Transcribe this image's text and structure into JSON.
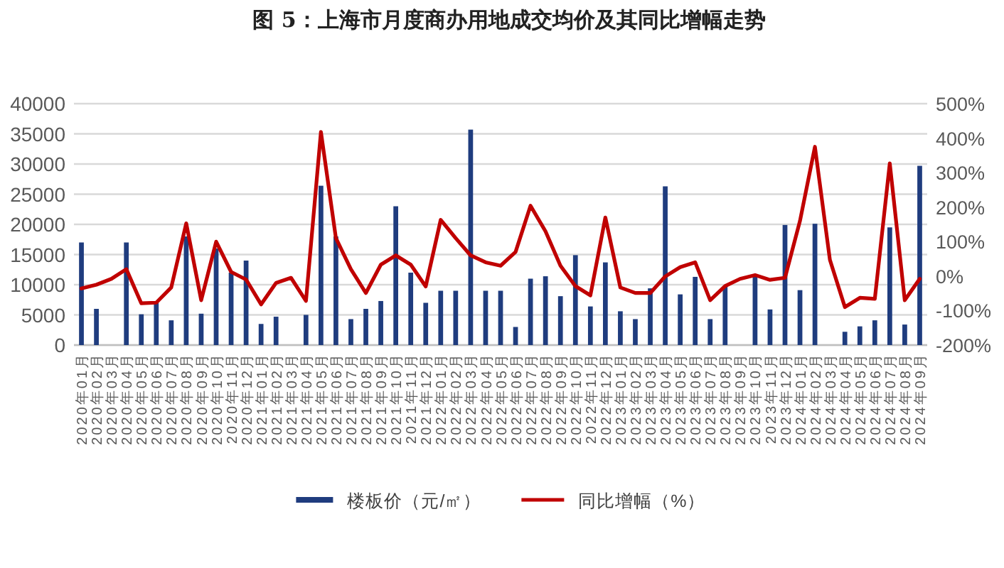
{
  "chart_data": {
    "type": "bar",
    "title": "图 5：上海市月度商办用地成交均价及其同比增幅走势",
    "categories": [
      "2020年01月",
      "2020年02月",
      "2020年03月",
      "2020年04月",
      "2020年05月",
      "2020年06月",
      "2020年07月",
      "2020年08月",
      "2020年09月",
      "2020年10月",
      "2020年11月",
      "2020年12月",
      "2021年01月",
      "2021年02月",
      "2021年03月",
      "2021年04月",
      "2021年05月",
      "2021年06月",
      "2021年07月",
      "2021年08月",
      "2021年09月",
      "2021年10月",
      "2021年11月",
      "2021年12月",
      "2022年01月",
      "2022年02月",
      "2022年03月",
      "2022年04月",
      "2022年05月",
      "2022年06月",
      "2022年07月",
      "2022年08月",
      "2022年09月",
      "2022年10月",
      "2022年11月",
      "2022年12月",
      "2023年01月",
      "2023年02月",
      "2023年03月",
      "2023年04月",
      "2023年05月",
      "2023年06月",
      "2023年07月",
      "2023年08月",
      "2023年09月",
      "2023年10月",
      "2023年11月",
      "2023年12月",
      "2024年01月",
      "2024年02月",
      "2024年03月",
      "2024年04月",
      "2024年05月",
      "2024年06月",
      "2024年07月",
      "2024年08月",
      "2024年09月"
    ],
    "series": [
      {
        "name": "楼板价（元/㎡）",
        "color": "#1f3c7e",
        "values": [
          17000,
          6000,
          null,
          17000,
          5100,
          7000,
          4100,
          18000,
          5200,
          16000,
          12000,
          14000,
          3500,
          4700,
          null,
          5000,
          26400,
          18000,
          4300,
          6000,
          7300,
          23000,
          12000,
          7000,
          9000,
          9000,
          35700,
          9000,
          9000,
          3000,
          11000,
          11400,
          8100,
          14900,
          6400,
          13700,
          5600,
          4300,
          9400,
          26300,
          8400,
          11300,
          4300,
          9800,
          null,
          11300,
          5900,
          19900,
          9100,
          20100,
          null,
          2200,
          3100,
          4100,
          19500,
          3400,
          29700
        ]
      },
      {
        "name": "同比增幅（%）",
        "type": "line",
        "axis": "y2",
        "color": "#c00000",
        "values": [
          -36,
          -25,
          -8,
          20,
          -79,
          -77,
          -33,
          153,
          -70,
          100,
          12,
          -10,
          -82,
          -20,
          -5,
          -72,
          418,
          110,
          20,
          -49,
          33,
          60,
          33,
          -30,
          163,
          110,
          60,
          40,
          30,
          70,
          204,
          130,
          30,
          -29,
          -56,
          170,
          -33,
          -49,
          -49,
          -1,
          26,
          40,
          -70,
          -29,
          -8,
          3,
          -11,
          -5,
          160,
          375,
          47,
          -90,
          -63,
          -66,
          327,
          -70,
          -8
        ]
      }
    ],
    "ylim": [
      0,
      40000
    ],
    "yticks": [
      0,
      5000,
      10000,
      15000,
      20000,
      25000,
      30000,
      35000,
      40000
    ],
    "y2lim": [
      -200,
      500
    ],
    "y2ticks": [
      {
        "value": -200,
        "label": "-200%"
      },
      {
        "value": -100,
        "label": "-100%"
      },
      {
        "value": 0,
        "label": "0%"
      },
      {
        "value": 100,
        "label": "100%"
      },
      {
        "value": 200,
        "label": "200%"
      },
      {
        "value": 300,
        "label": "300%"
      },
      {
        "value": 400,
        "label": "400%"
      },
      {
        "value": 500,
        "label": "500%"
      }
    ],
    "grid": "y",
    "legend": "bottom"
  }
}
